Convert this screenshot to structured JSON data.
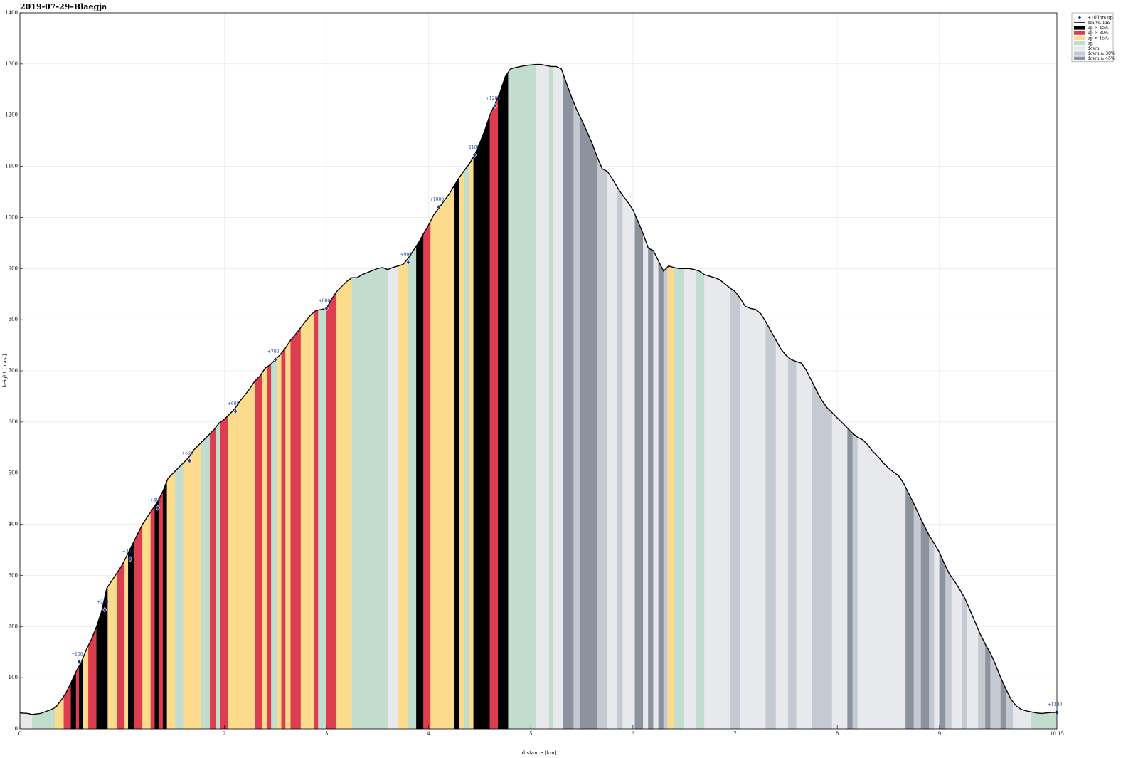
{
  "chart_data": {
    "type": "area",
    "title": "2019-07-29–Blaegja",
    "xlabel": "distance [km]",
    "ylabel": "height [masl]",
    "xlim": [
      0,
      10.15
    ],
    "ylim": [
      0,
      1400
    ],
    "x_ticks": [
      0,
      1,
      2,
      3,
      4,
      5,
      6,
      7,
      8,
      9
    ],
    "x_tick_labels": [
      "0",
      "1",
      "2",
      "3",
      "4",
      "5",
      "6",
      "7",
      "8",
      "9"
    ],
    "x_end_label": "10.15",
    "y_ticks": [
      100,
      200,
      300,
      400,
      500,
      600,
      700,
      800,
      900,
      1000,
      1100,
      1200,
      1300,
      1400
    ],
    "y_tick_labels": [
      "100",
      "200",
      "300",
      "400",
      "500",
      "600",
      "700",
      "800",
      "900",
      "1000",
      "1100",
      "1200",
      "1300",
      "1400"
    ],
    "grid": true,
    "legend_position": "top-right",
    "legend": [
      {
        "key": "marker",
        "label": "+100hm up"
      },
      {
        "key": "line",
        "label": "hm vs. km"
      },
      {
        "key": "up45",
        "label": "up > 45%"
      },
      {
        "key": "up30",
        "label": "up > 30%"
      },
      {
        "key": "up15",
        "label": "up > 15%"
      },
      {
        "key": "up",
        "label": "up"
      },
      {
        "key": "down",
        "label": "down"
      },
      {
        "key": "down30",
        "label": "down ≥ 30%"
      },
      {
        "key": "down45",
        "label": "down ≥ 45%"
      }
    ],
    "colors": {
      "up45": "#000000",
      "up30": "#dc3e50",
      "up15": "#fcdc8c",
      "up": "#c2ddcd",
      "down": "#e7e9ec",
      "down30": "#c5c9d1",
      "down45": "#8c929e",
      "line": "#000000",
      "marker": "#1a3d9c"
    },
    "profile": [
      [
        0.0,
        31
      ],
      [
        0.08,
        30
      ],
      [
        0.12,
        28
      ],
      [
        0.2,
        30
      ],
      [
        0.3,
        37
      ],
      [
        0.35,
        42
      ],
      [
        0.4,
        55
      ],
      [
        0.45,
        70
      ],
      [
        0.5,
        90
      ],
      [
        0.55,
        112
      ],
      [
        0.6,
        130
      ],
      [
        0.65,
        155
      ],
      [
        0.7,
        175
      ],
      [
        0.75,
        200
      ],
      [
        0.8,
        230
      ],
      [
        0.85,
        275
      ],
      [
        0.9,
        290
      ],
      [
        0.95,
        305
      ],
      [
        1.0,
        320
      ],
      [
        1.05,
        340
      ],
      [
        1.1,
        360
      ],
      [
        1.15,
        380
      ],
      [
        1.2,
        400
      ],
      [
        1.25,
        415
      ],
      [
        1.3,
        430
      ],
      [
        1.35,
        445
      ],
      [
        1.4,
        465
      ],
      [
        1.45,
        490
      ],
      [
        1.5,
        500
      ],
      [
        1.55,
        510
      ],
      [
        1.6,
        520
      ],
      [
        1.65,
        530
      ],
      [
        1.7,
        545
      ],
      [
        1.75,
        555
      ],
      [
        1.8,
        565
      ],
      [
        1.85,
        575
      ],
      [
        1.9,
        585
      ],
      [
        1.95,
        598
      ],
      [
        2.0,
        605
      ],
      [
        2.05,
        615
      ],
      [
        2.1,
        625
      ],
      [
        2.15,
        640
      ],
      [
        2.2,
        652
      ],
      [
        2.25,
        665
      ],
      [
        2.3,
        680
      ],
      [
        2.35,
        690
      ],
      [
        2.4,
        705
      ],
      [
        2.45,
        712
      ],
      [
        2.5,
        722
      ],
      [
        2.55,
        732
      ],
      [
        2.6,
        745
      ],
      [
        2.65,
        760
      ],
      [
        2.7,
        772
      ],
      [
        2.75,
        785
      ],
      [
        2.8,
        798
      ],
      [
        2.85,
        810
      ],
      [
        2.9,
        818
      ],
      [
        2.95,
        820
      ],
      [
        3.0,
        822
      ],
      [
        3.05,
        840
      ],
      [
        3.1,
        855
      ],
      [
        3.15,
        865
      ],
      [
        3.2,
        875
      ],
      [
        3.25,
        882
      ],
      [
        3.3,
        882
      ],
      [
        3.35,
        888
      ],
      [
        3.4,
        892
      ],
      [
        3.5,
        900
      ],
      [
        3.55,
        902
      ],
      [
        3.6,
        898
      ],
      [
        3.65,
        902
      ],
      [
        3.7,
        905
      ],
      [
        3.75,
        908
      ],
      [
        3.8,
        920
      ],
      [
        3.85,
        935
      ],
      [
        3.9,
        950
      ],
      [
        3.95,
        968
      ],
      [
        4.0,
        985
      ],
      [
        4.05,
        1005
      ],
      [
        4.1,
        1018
      ],
      [
        4.15,
        1032
      ],
      [
        4.2,
        1045
      ],
      [
        4.25,
        1062
      ],
      [
        4.3,
        1078
      ],
      [
        4.35,
        1092
      ],
      [
        4.4,
        1105
      ],
      [
        4.45,
        1122
      ],
      [
        4.5,
        1145
      ],
      [
        4.55,
        1170
      ],
      [
        4.6,
        1200
      ],
      [
        4.65,
        1222
      ],
      [
        4.7,
        1245
      ],
      [
        4.75,
        1275
      ],
      [
        4.8,
        1290
      ],
      [
        4.85,
        1293
      ],
      [
        4.9,
        1295
      ],
      [
        4.95,
        1297
      ],
      [
        5.0,
        1298
      ],
      [
        5.05,
        1299
      ],
      [
        5.1,
        1299
      ],
      [
        5.15,
        1297
      ],
      [
        5.2,
        1295
      ],
      [
        5.25,
        1295
      ],
      [
        5.3,
        1290
      ],
      [
        5.35,
        1262
      ],
      [
        5.4,
        1235
      ],
      [
        5.45,
        1210
      ],
      [
        5.5,
        1190
      ],
      [
        5.55,
        1168
      ],
      [
        5.6,
        1145
      ],
      [
        5.65,
        1118
      ],
      [
        5.7,
        1095
      ],
      [
        5.75,
        1090
      ],
      [
        5.8,
        1075
      ],
      [
        5.85,
        1058
      ],
      [
        5.9,
        1043
      ],
      [
        5.95,
        1030
      ],
      [
        6.0,
        1015
      ],
      [
        6.05,
        992
      ],
      [
        6.1,
        968
      ],
      [
        6.15,
        940
      ],
      [
        6.2,
        935
      ],
      [
        6.25,
        915
      ],
      [
        6.3,
        895
      ],
      [
        6.35,
        905
      ],
      [
        6.4,
        902
      ],
      [
        6.45,
        900
      ],
      [
        6.5,
        900
      ],
      [
        6.55,
        900
      ],
      [
        6.6,
        898
      ],
      [
        6.65,
        895
      ],
      [
        6.7,
        888
      ],
      [
        6.75,
        885
      ],
      [
        6.8,
        882
      ],
      [
        6.85,
        878
      ],
      [
        6.9,
        870
      ],
      [
        6.95,
        862
      ],
      [
        7.0,
        855
      ],
      [
        7.05,
        842
      ],
      [
        7.1,
        826
      ],
      [
        7.15,
        822
      ],
      [
        7.2,
        820
      ],
      [
        7.25,
        812
      ],
      [
        7.3,
        796
      ],
      [
        7.35,
        778
      ],
      [
        7.4,
        760
      ],
      [
        7.45,
        742
      ],
      [
        7.5,
        730
      ],
      [
        7.55,
        722
      ],
      [
        7.6,
        718
      ],
      [
        7.65,
        715
      ],
      [
        7.7,
        700
      ],
      [
        7.75,
        680
      ],
      [
        7.8,
        660
      ],
      [
        7.85,
        642
      ],
      [
        7.9,
        628
      ],
      [
        7.95,
        618
      ],
      [
        8.0,
        608
      ],
      [
        8.05,
        598
      ],
      [
        8.1,
        588
      ],
      [
        8.15,
        578
      ],
      [
        8.2,
        570
      ],
      [
        8.25,
        565
      ],
      [
        8.3,
        555
      ],
      [
        8.35,
        542
      ],
      [
        8.4,
        532
      ],
      [
        8.45,
        520
      ],
      [
        8.5,
        510
      ],
      [
        8.55,
        502
      ],
      [
        8.6,
        495
      ],
      [
        8.65,
        480
      ],
      [
        8.7,
        460
      ],
      [
        8.75,
        440
      ],
      [
        8.8,
        418
      ],
      [
        8.85,
        398
      ],
      [
        8.9,
        378
      ],
      [
        8.95,
        362
      ],
      [
        9.0,
        345
      ],
      [
        9.05,
        322
      ],
      [
        9.1,
        302
      ],
      [
        9.15,
        288
      ],
      [
        9.2,
        272
      ],
      [
        9.25,
        255
      ],
      [
        9.3,
        232
      ],
      [
        9.35,
        208
      ],
      [
        9.4,
        185
      ],
      [
        9.45,
        165
      ],
      [
        9.5,
        148
      ],
      [
        9.55,
        125
      ],
      [
        9.6,
        100
      ],
      [
        9.65,
        78
      ],
      [
        9.7,
        58
      ],
      [
        9.75,
        45
      ],
      [
        9.8,
        38
      ],
      [
        9.85,
        35
      ],
      [
        9.9,
        33
      ],
      [
        9.95,
        31
      ],
      [
        10.0,
        30
      ],
      [
        10.05,
        31
      ],
      [
        10.1,
        32
      ],
      [
        10.15,
        32
      ]
    ],
    "segments": [
      [
        0.0,
        0.12,
        "down"
      ],
      [
        0.12,
        0.35,
        "up"
      ],
      [
        0.35,
        0.43,
        "up15"
      ],
      [
        0.43,
        0.5,
        "up30"
      ],
      [
        0.5,
        0.55,
        "up45"
      ],
      [
        0.55,
        0.58,
        "up30"
      ],
      [
        0.58,
        0.62,
        "up45"
      ],
      [
        0.62,
        0.67,
        "up15"
      ],
      [
        0.67,
        0.75,
        "up30"
      ],
      [
        0.75,
        0.86,
        "up45"
      ],
      [
        0.86,
        0.95,
        "up15"
      ],
      [
        0.95,
        1.02,
        "up30"
      ],
      [
        1.02,
        1.06,
        "up15"
      ],
      [
        1.06,
        1.12,
        "up45"
      ],
      [
        1.12,
        1.2,
        "up30"
      ],
      [
        1.2,
        1.28,
        "up15"
      ],
      [
        1.28,
        1.32,
        "up30"
      ],
      [
        1.32,
        1.36,
        "up45"
      ],
      [
        1.36,
        1.4,
        "up30"
      ],
      [
        1.4,
        1.44,
        "up45"
      ],
      [
        1.44,
        1.52,
        "up15"
      ],
      [
        1.52,
        1.6,
        "up"
      ],
      [
        1.6,
        1.77,
        "up15"
      ],
      [
        1.77,
        1.86,
        "up"
      ],
      [
        1.86,
        1.92,
        "up30"
      ],
      [
        1.92,
        1.96,
        "up"
      ],
      [
        1.96,
        2.04,
        "up30"
      ],
      [
        2.04,
        2.3,
        "up15"
      ],
      [
        2.3,
        2.37,
        "up30"
      ],
      [
        2.37,
        2.42,
        "up15"
      ],
      [
        2.42,
        2.46,
        "up30"
      ],
      [
        2.46,
        2.52,
        "up"
      ],
      [
        2.52,
        2.56,
        "up15"
      ],
      [
        2.56,
        2.6,
        "up30"
      ],
      [
        2.6,
        2.65,
        "up15"
      ],
      [
        2.65,
        2.75,
        "up30"
      ],
      [
        2.75,
        2.88,
        "up15"
      ],
      [
        2.88,
        2.92,
        "up30"
      ],
      [
        2.92,
        3.0,
        "up"
      ],
      [
        3.0,
        3.1,
        "up30"
      ],
      [
        3.1,
        3.25,
        "up15"
      ],
      [
        3.25,
        3.35,
        "up"
      ],
      [
        3.35,
        3.6,
        "up"
      ],
      [
        3.6,
        3.7,
        "down"
      ],
      [
        3.7,
        3.8,
        "up15"
      ],
      [
        3.8,
        3.88,
        "up"
      ],
      [
        3.88,
        3.95,
        "up45"
      ],
      [
        3.95,
        4.02,
        "up30"
      ],
      [
        4.02,
        4.1,
        "up15"
      ],
      [
        4.1,
        4.25,
        "up15"
      ],
      [
        4.25,
        4.3,
        "up45"
      ],
      [
        4.3,
        4.35,
        "up15"
      ],
      [
        4.35,
        4.4,
        "up"
      ],
      [
        4.4,
        4.44,
        "up15"
      ],
      [
        4.44,
        4.6,
        "up45"
      ],
      [
        4.6,
        4.68,
        "up30"
      ],
      [
        4.68,
        4.78,
        "up45"
      ],
      [
        4.78,
        5.05,
        "up"
      ],
      [
        5.05,
        5.18,
        "down"
      ],
      [
        5.18,
        5.22,
        "up"
      ],
      [
        5.22,
        5.32,
        "down"
      ],
      [
        5.32,
        5.42,
        "down45"
      ],
      [
        5.42,
        5.48,
        "down30"
      ],
      [
        5.48,
        5.65,
        "down45"
      ],
      [
        5.65,
        5.75,
        "down30"
      ],
      [
        5.75,
        5.85,
        "down"
      ],
      [
        5.85,
        5.9,
        "down30"
      ],
      [
        5.9,
        6.02,
        "down"
      ],
      [
        6.02,
        6.1,
        "down45"
      ],
      [
        6.1,
        6.15,
        "down"
      ],
      [
        6.15,
        6.2,
        "down45"
      ],
      [
        6.2,
        6.25,
        "down"
      ],
      [
        6.25,
        6.3,
        "down45"
      ],
      [
        6.3,
        6.34,
        "down30"
      ],
      [
        6.34,
        6.4,
        "up15"
      ],
      [
        6.4,
        6.5,
        "up"
      ],
      [
        6.5,
        6.62,
        "down"
      ],
      [
        6.62,
        6.7,
        "up"
      ],
      [
        6.7,
        6.95,
        "down"
      ],
      [
        6.95,
        7.05,
        "down30"
      ],
      [
        7.05,
        7.3,
        "down"
      ],
      [
        7.3,
        7.4,
        "down30"
      ],
      [
        7.4,
        7.52,
        "down"
      ],
      [
        7.52,
        7.6,
        "down30"
      ],
      [
        7.6,
        7.75,
        "down"
      ],
      [
        7.75,
        7.95,
        "down30"
      ],
      [
        7.95,
        8.1,
        "down"
      ],
      [
        8.1,
        8.15,
        "down45"
      ],
      [
        8.15,
        8.2,
        "down30"
      ],
      [
        8.2,
        8.45,
        "down"
      ],
      [
        8.45,
        8.67,
        "down"
      ],
      [
        8.67,
        8.75,
        "down45"
      ],
      [
        8.75,
        8.82,
        "down30"
      ],
      [
        8.82,
        8.9,
        "down45"
      ],
      [
        8.9,
        8.95,
        "down30"
      ],
      [
        8.95,
        9.0,
        "down"
      ],
      [
        9.0,
        9.06,
        "down45"
      ],
      [
        9.06,
        9.12,
        "down30"
      ],
      [
        9.12,
        9.22,
        "down"
      ],
      [
        9.22,
        9.27,
        "down30"
      ],
      [
        9.27,
        9.38,
        "down"
      ],
      [
        9.38,
        9.45,
        "down30"
      ],
      [
        9.45,
        9.5,
        "down45"
      ],
      [
        9.5,
        9.6,
        "down30"
      ],
      [
        9.6,
        9.65,
        "down45"
      ],
      [
        9.65,
        9.72,
        "down30"
      ],
      [
        9.72,
        9.9,
        "down"
      ],
      [
        9.9,
        10.0,
        "up"
      ],
      [
        10.0,
        10.15,
        "up"
      ]
    ],
    "markers": [
      {
        "label": "+100",
        "x": 0.58,
        "y": 131
      },
      {
        "label": "+200",
        "x": 0.83,
        "y": 233
      },
      {
        "label": "+300",
        "x": 1.08,
        "y": 332
      },
      {
        "label": "+400",
        "x": 1.35,
        "y": 432
      },
      {
        "label": "+500",
        "x": 1.66,
        "y": 524
      },
      {
        "label": "+600",
        "x": 2.11,
        "y": 621
      },
      {
        "label": "+700",
        "x": 2.5,
        "y": 722
      },
      {
        "label": "+800",
        "x": 3.0,
        "y": 822
      },
      {
        "label": "+900",
        "x": 3.8,
        "y": 912
      },
      {
        "label": "+1000",
        "x": 4.1,
        "y": 1020
      },
      {
        "label": "+1100",
        "x": 4.45,
        "y": 1122
      },
      {
        "label": "+1200",
        "x": 4.65,
        "y": 1218
      },
      {
        "label": "+1300",
        "x": 10.15,
        "y": 32
      }
    ]
  }
}
